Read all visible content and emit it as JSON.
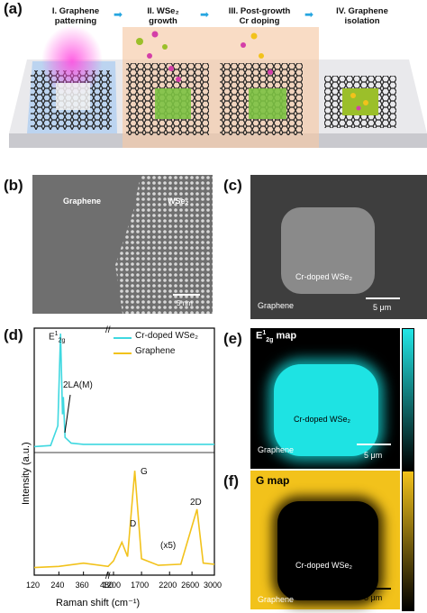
{
  "panel_a": {
    "label": "(a)",
    "steps": [
      {
        "num": "I.",
        "line1": "Graphene",
        "line2": "patterning"
      },
      {
        "num": "II.",
        "line1": "WSe₂",
        "line2": "growth"
      },
      {
        "num": "III.",
        "line1": "Post-growth",
        "line2": "Cr doping"
      },
      {
        "num": "IV.",
        "line1": "Graphene",
        "line2": "isolation"
      }
    ]
  },
  "panel_b": {
    "label": "(b)",
    "left_text": "Graphene",
    "right_text": "WSe₂",
    "scale": "5 nm"
  },
  "panel_c": {
    "label": "(c)",
    "region_text": "Cr-doped WSe₂",
    "bg_text": "Graphene",
    "scale": "5 μm"
  },
  "panel_d": {
    "label": "(d)",
    "ylabel": "Intensity (a.u.)",
    "xlabel": "Raman shift (cm⁻¹)",
    "legend": [
      "Cr-doped WSe₂",
      "Graphene"
    ],
    "peak_labels": {
      "e2g": "E",
      "e2g_sup": "1",
      "e2g_sub": "2g",
      "la": "2LA(M)",
      "d": "D",
      "g": "G",
      "2d": "2D",
      "x5": "(x5)"
    },
    "ticks_left": [
      "120",
      "240",
      "360",
      "480"
    ],
    "ticks_right": [
      "1200",
      "1700",
      "2200",
      "2600",
      "3000"
    ]
  },
  "panel_e": {
    "label": "(e)",
    "title_main": "E",
    "title_sup": "1",
    "title_sub": "2g",
    "title_rest": " map",
    "region_text": "Cr-doped WSe₂",
    "bg_text": "Graphene",
    "scale": "5 μm",
    "colors": {
      "high": "#22e6e6",
      "low": "#000000"
    }
  },
  "panel_f": {
    "label": "(f)",
    "title": "G map",
    "region_text": "Cr-doped WSe₂",
    "bg_text": "Graphene",
    "scale": "5 μm",
    "colors": {
      "high": "#f2c21b",
      "low": "#000000"
    }
  },
  "chart_data": {
    "type": "line",
    "xlabel": "Raman shift (cm⁻¹)",
    "ylabel": "Intensity (a.u.)",
    "x_axis_break": true,
    "series": [
      {
        "name": "Cr-doped WSe₂",
        "color": "#3fd8e0",
        "points": [
          [
            120,
            0.02
          ],
          [
            200,
            0.03
          ],
          [
            235,
            0.2
          ],
          [
            248,
            1.0
          ],
          [
            258,
            0.3
          ],
          [
            262,
            0.45
          ],
          [
            270,
            0.1
          ],
          [
            300,
            0.05
          ],
          [
            360,
            0.04
          ],
          [
            480,
            0.04
          ],
          [
            1200,
            0.04
          ],
          [
            1700,
            0.04
          ],
          [
            2200,
            0.04
          ],
          [
            3000,
            0.04
          ]
        ]
      },
      {
        "name": "Graphene",
        "color": "#f2c21b",
        "points": [
          [
            120,
            0.02
          ],
          [
            240,
            0.03
          ],
          [
            360,
            0.06
          ],
          [
            480,
            0.03
          ],
          [
            1200,
            0.08
          ],
          [
            1350,
            0.25
          ],
          [
            1450,
            0.12
          ],
          [
            1580,
            0.9
          ],
          [
            1700,
            0.1
          ],
          [
            2000,
            0.04
          ],
          [
            2400,
            0.05
          ],
          [
            2690,
            0.55
          ],
          [
            2800,
            0.06
          ],
          [
            3000,
            0.05
          ]
        ]
      }
    ],
    "annotations": [
      "E¹₂g",
      "2LA(M)",
      "D",
      "G",
      "2D",
      "(x5)"
    ]
  }
}
